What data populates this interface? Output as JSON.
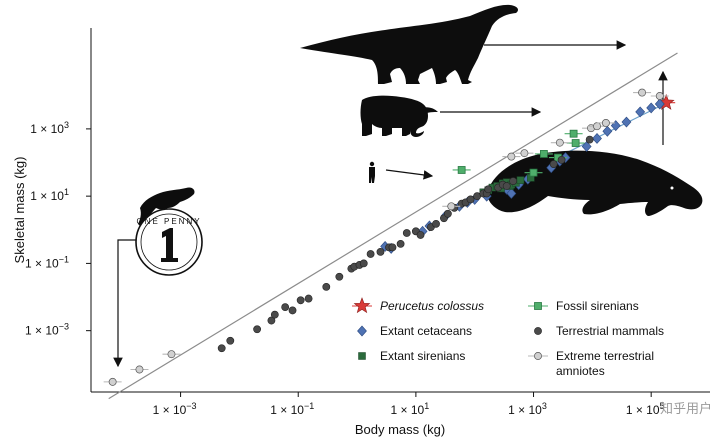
{
  "chart_data": {
    "type": "scatter",
    "xlabel": "Body mass (kg)",
    "ylabel": "Skeletal mass (kg)",
    "x_scale": "log",
    "y_scale": "log",
    "xlim": [
      3e-05,
      1000000
    ],
    "ylim": [
      1.5e-05,
      1000000
    ],
    "x_ticks": [
      {
        "value": 0.001,
        "label": "1 × 10",
        "exp": "−3"
      },
      {
        "value": 0.1,
        "label": "1 × 10",
        "exp": "−1"
      },
      {
        "value": 10,
        "label": "1 × 10",
        "exp": "1"
      },
      {
        "value": 1000,
        "label": "1 × 10",
        "exp": "3"
      },
      {
        "value": 100000,
        "label": "1 × 10",
        "exp": "5"
      }
    ],
    "y_ticks": [
      {
        "value": 0.001,
        "label": "1 × 10",
        "exp": "−3"
      },
      {
        "value": 0.1,
        "label": "1 × 10",
        "exp": "−1"
      },
      {
        "value": 10,
        "label": "1 × 10",
        "exp": "1"
      },
      {
        "value": 1000,
        "label": "1 × 10",
        "exp": "3"
      }
    ],
    "grid": false,
    "legend_placement": "bottom-right",
    "coin_text": "ONE PENNY",
    "watermark": "知乎用户",
    "regression_lines": [
      {
        "name": "gray",
        "color": "#8c8c8c",
        "points": [
          [
            6e-05,
            9.5e-06
          ],
          [
            280000,
            180000
          ]
        ]
      },
      {
        "name": "blue",
        "color": "#6a9fc9",
        "points": [
          [
            55,
            5
          ],
          [
            150000,
            5000
          ]
        ]
      }
    ],
    "series": [
      {
        "name": "Perucetus colossus",
        "italic": true,
        "marker": "star",
        "color": "#d93a37",
        "error_bar_x": true,
        "points": [
          [
            180000,
            6000
          ]
        ]
      },
      {
        "name": "Extant cetaceans",
        "italic": false,
        "marker": "diamond",
        "color": "#4f72b3",
        "points": [
          [
            3,
            0.32
          ],
          [
            3.8,
            0.28
          ],
          [
            13,
            0.9
          ],
          [
            17,
            1.3
          ],
          [
            32,
            2.6
          ],
          [
            55,
            5
          ],
          [
            75,
            6.5
          ],
          [
            100,
            8
          ],
          [
            160,
            10
          ],
          [
            350,
            16
          ],
          [
            420,
            12
          ],
          [
            560,
            22
          ],
          [
            800,
            32
          ],
          [
            2000,
            70
          ],
          [
            2800,
            110
          ],
          [
            3500,
            140
          ],
          [
            8000,
            300
          ],
          [
            12000,
            520
          ],
          [
            18000,
            850
          ],
          [
            25000,
            1250
          ],
          [
            38000,
            1600
          ],
          [
            65000,
            3200
          ],
          [
            100000,
            4200
          ],
          [
            140000,
            5500
          ]
        ]
      },
      {
        "name": "Extant sirenians",
        "italic": false,
        "marker": "square",
        "color": "#2b6b3c",
        "points": [
          [
            140,
            13
          ],
          [
            170,
            15
          ],
          [
            200,
            18
          ],
          [
            240,
            20
          ],
          [
            280,
            17
          ],
          [
            300,
            24
          ],
          [
            350,
            26
          ],
          [
            400,
            20
          ],
          [
            420,
            22
          ],
          [
            500,
            25
          ],
          [
            600,
            30
          ],
          [
            900,
            35
          ]
        ]
      },
      {
        "name": "Fossil sirenians",
        "italic": false,
        "marker": "square-open",
        "color": "#4fae6b",
        "error_bar_x": true,
        "points": [
          [
            60,
            60
          ],
          [
            1000,
            50
          ],
          [
            1500,
            180
          ],
          [
            2600,
            140
          ],
          [
            4800,
            720
          ],
          [
            5200,
            380
          ]
        ]
      },
      {
        "name": "Terrestrial mammals",
        "italic": false,
        "marker": "circle",
        "color": "#4a4a4a",
        "points": [
          [
            0.005,
            0.0003
          ],
          [
            0.007,
            0.0005
          ],
          [
            0.02,
            0.0011
          ],
          [
            0.035,
            0.002
          ],
          [
            0.04,
            0.003
          ],
          [
            0.06,
            0.005
          ],
          [
            0.08,
            0.004
          ],
          [
            0.11,
            0.008
          ],
          [
            0.15,
            0.009
          ],
          [
            0.3,
            0.02
          ],
          [
            0.5,
            0.04
          ],
          [
            0.8,
            0.07
          ],
          [
            0.9,
            0.08
          ],
          [
            1.1,
            0.09
          ],
          [
            1.3,
            0.1
          ],
          [
            1.7,
            0.19
          ],
          [
            2.5,
            0.22
          ],
          [
            3.5,
            0.3
          ],
          [
            4,
            0.3
          ],
          [
            5.5,
            0.38
          ],
          [
            7,
            0.8
          ],
          [
            10,
            0.9
          ],
          [
            12,
            0.7
          ],
          [
            18,
            1.2
          ],
          [
            22,
            1.5
          ],
          [
            30,
            2.2
          ],
          [
            35,
            3
          ],
          [
            45,
            4.5
          ],
          [
            60,
            6
          ],
          [
            70,
            6.5
          ],
          [
            85,
            8
          ],
          [
            110,
            10
          ],
          [
            140,
            12
          ],
          [
            160,
            12
          ],
          [
            170,
            16
          ],
          [
            250,
            18
          ],
          [
            300,
            22
          ],
          [
            350,
            20
          ],
          [
            450,
            28
          ],
          [
            2200,
            90
          ],
          [
            3000,
            120
          ],
          [
            9000,
            480
          ]
        ]
      },
      {
        "name": "Extreme terrestrial amniotes",
        "italic": false,
        "marker": "circle-open",
        "color": "#b8b8b8",
        "error_bar_x": true,
        "points": [
          [
            7e-05,
            3e-05
          ],
          [
            0.0002,
            7e-05
          ],
          [
            0.0007,
            0.0002
          ],
          [
            40,
            5
          ],
          [
            420,
            150
          ],
          [
            700,
            190
          ],
          [
            2800,
            390
          ],
          [
            9500,
            1050
          ],
          [
            12000,
            1200
          ],
          [
            17000,
            1500
          ],
          [
            70000,
            12000
          ],
          [
            140000,
            9500
          ]
        ]
      }
    ]
  }
}
